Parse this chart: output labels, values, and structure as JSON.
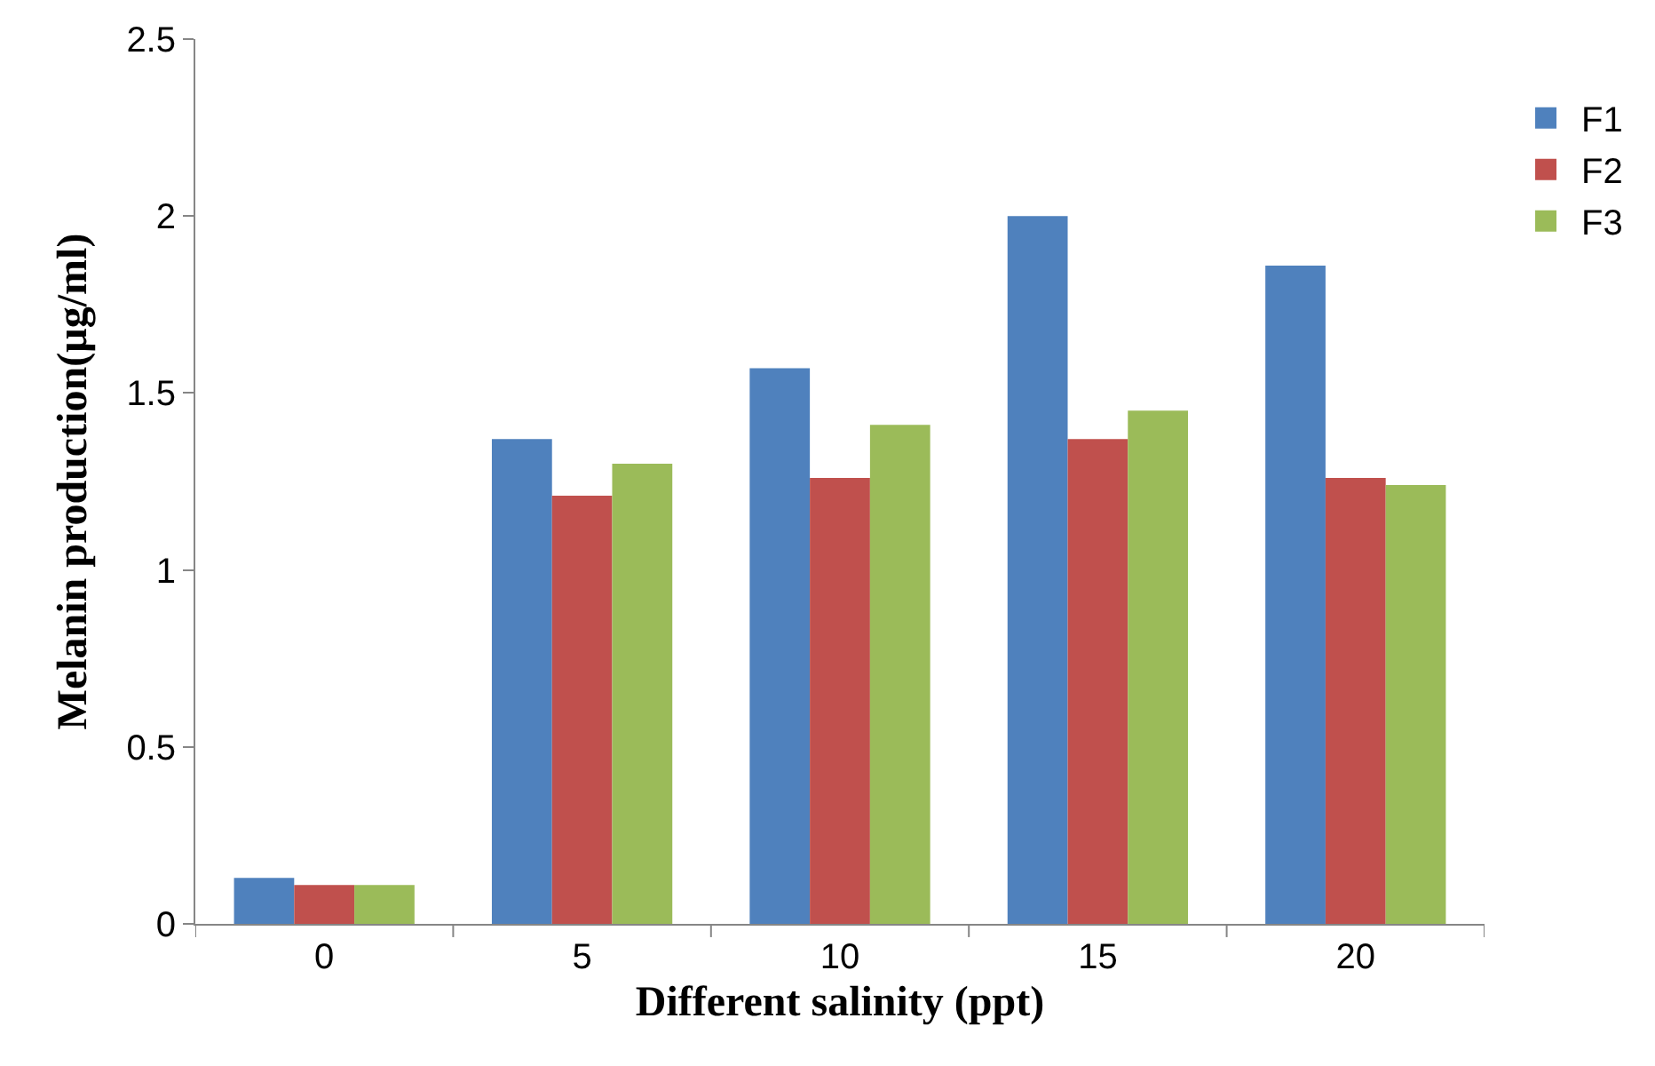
{
  "chart_data": {
    "type": "bar",
    "xlabel": "Different salinity (ppt)",
    "ylabel": "Melanin production(µg/ml)",
    "categories": [
      "0",
      "5",
      "10",
      "15",
      "20"
    ],
    "series": [
      {
        "name": "F1",
        "color": "#4f81bd",
        "values": [
          0.13,
          1.37,
          1.57,
          2.0,
          1.86
        ]
      },
      {
        "name": "F2",
        "color": "#c0504d",
        "values": [
          0.11,
          1.21,
          1.26,
          1.37,
          1.26
        ]
      },
      {
        "name": "F3",
        "color": "#9bbb59",
        "values": [
          0.11,
          1.3,
          1.41,
          1.45,
          1.24
        ]
      }
    ],
    "ylim": [
      0,
      2.5
    ],
    "yticks": [
      0,
      0.5,
      1,
      1.5,
      2,
      2.5
    ],
    "legend": "right"
  }
}
